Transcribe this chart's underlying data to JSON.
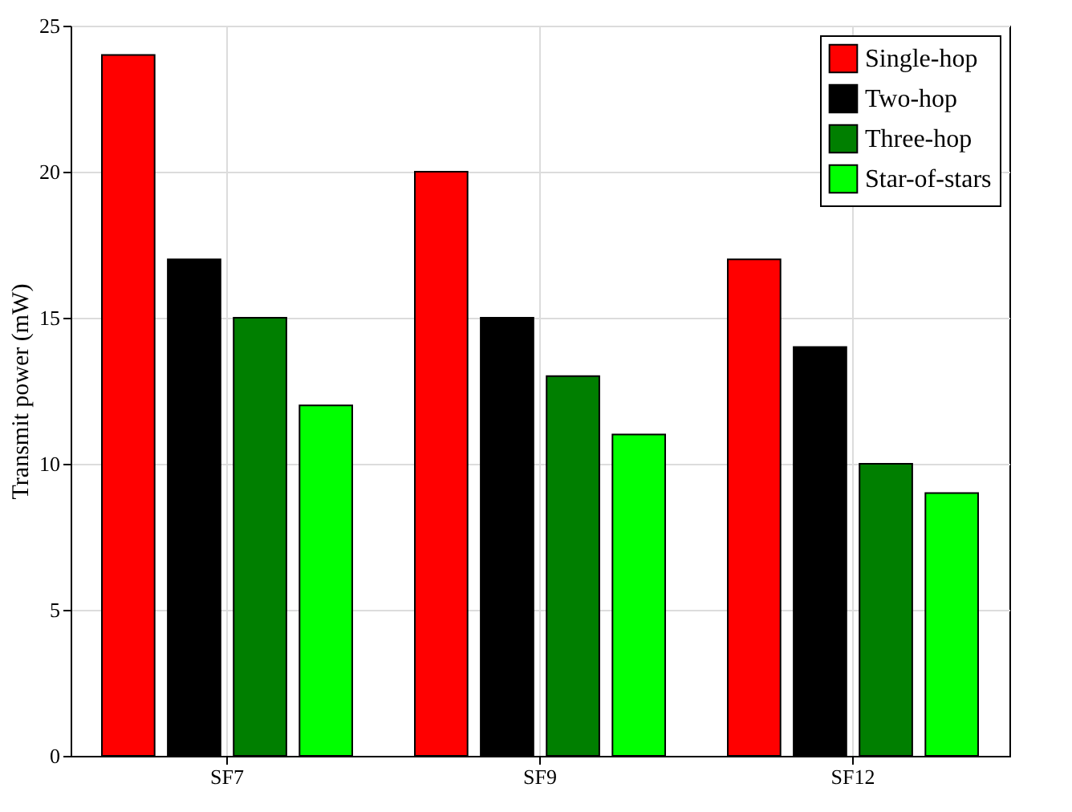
{
  "chart_data": {
    "type": "bar",
    "ylabel": "Transmit power (mW)",
    "categories": [
      "SF7",
      "SF9",
      "SF12"
    ],
    "series": [
      {
        "name": "Single-hop",
        "color": "#ff0000",
        "values": [
          24,
          20,
          17
        ]
      },
      {
        "name": "Two-hop",
        "color": "#000000",
        "values": [
          17,
          15,
          14
        ]
      },
      {
        "name": "Three-hop",
        "color": "#007f00",
        "values": [
          15,
          13,
          10
        ]
      },
      {
        "name": "Star-of-stars",
        "color": "#00ff00",
        "values": [
          12,
          11,
          9
        ]
      }
    ],
    "ylim": [
      0,
      25
    ],
    "yticks": [
      0,
      5,
      10,
      15,
      20,
      25
    ],
    "grid": true,
    "legend": "top right"
  }
}
